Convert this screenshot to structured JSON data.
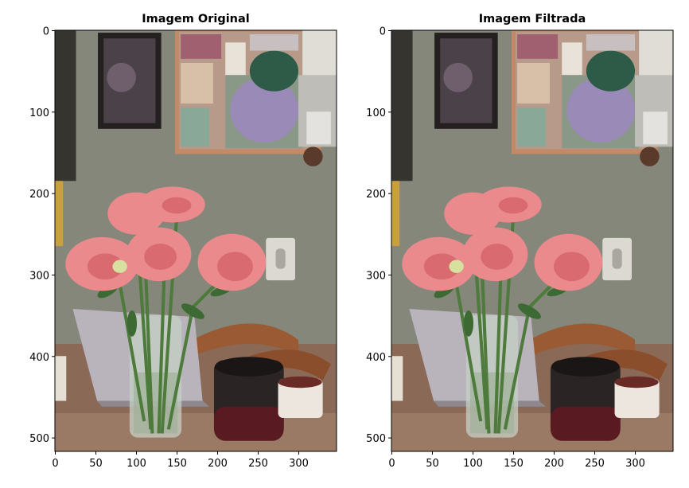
{
  "chart_data": [
    {
      "type": "image",
      "title": "Imagem Original",
      "xlim": [
        -0.5,
        346.5
      ],
      "ylim": [
        516.5,
        -0.5
      ],
      "xticks": [
        0,
        50,
        100,
        150,
        200,
        250,
        300
      ],
      "yticks": [
        0,
        100,
        200,
        300,
        400,
        500
      ]
    },
    {
      "type": "image",
      "title": "Imagem Filtrada",
      "xlim": [
        -0.5,
        346.5
      ],
      "ylim": [
        516.5,
        -0.5
      ],
      "xticks": [
        0,
        50,
        100,
        150,
        200,
        250,
        300
      ],
      "yticks": [
        0,
        100,
        200,
        300,
        400,
        500
      ]
    }
  ]
}
